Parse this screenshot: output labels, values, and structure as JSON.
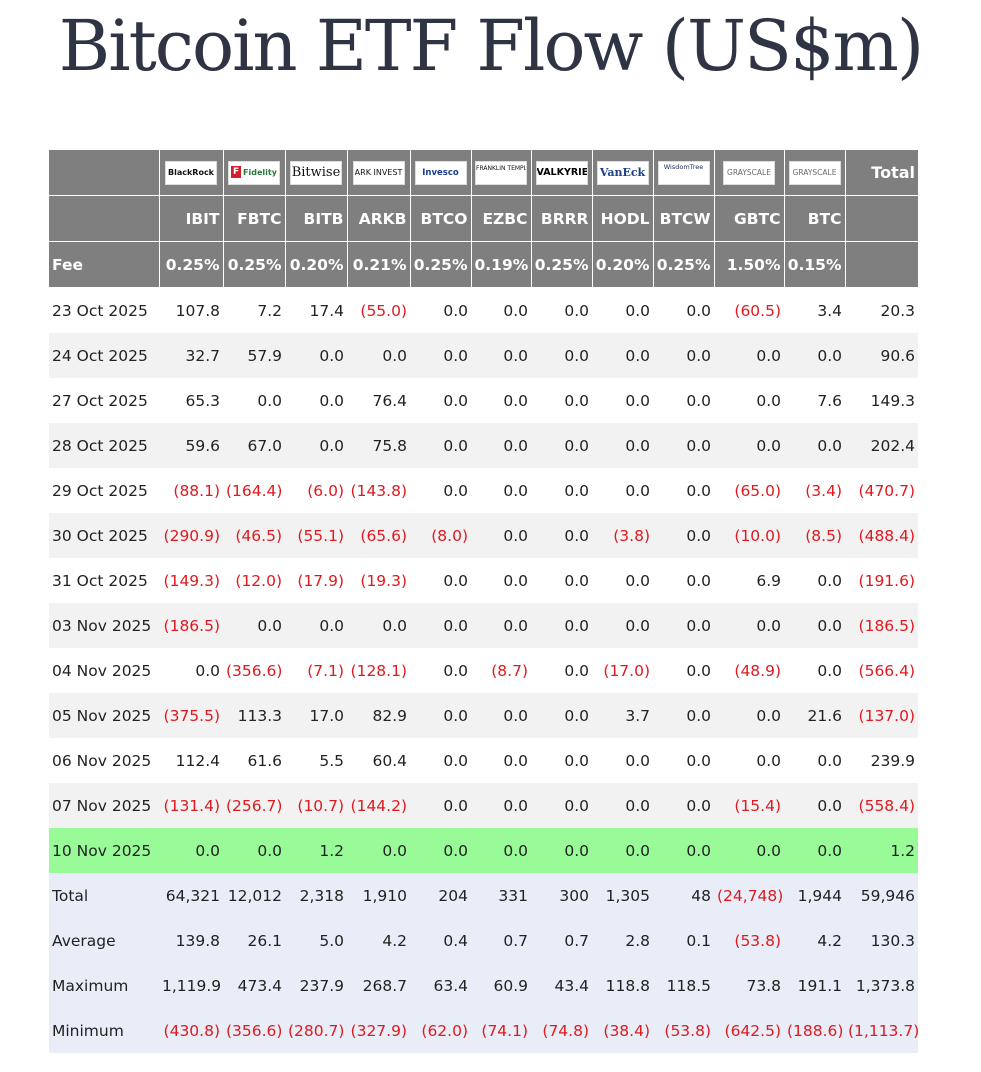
{
  "title": "Bitcoin ETF Flow (US$m)",
  "issuers": [
    {
      "logo_text": "BlackRock",
      "icon": "blackrock-logo"
    },
    {
      "logo_text": "Fidelity",
      "icon": "fidelity-logo"
    },
    {
      "logo_text": "Bitwise",
      "icon": "bitwise-logo"
    },
    {
      "logo_text": "ARK INVEST",
      "icon": "ark-invest-logo"
    },
    {
      "logo_text": "Invesco",
      "icon": "invesco-logo"
    },
    {
      "logo_text": "FRANKLIN TEMPLETON",
      "icon": "franklin-templeton-logo"
    },
    {
      "logo_text": "VALKYRIE",
      "icon": "valkyrie-logo"
    },
    {
      "logo_text": "VanEck",
      "icon": "vaneck-logo"
    },
    {
      "logo_text": "WisdomTree",
      "icon": "wisdomtree-logo"
    },
    {
      "logo_text": "GRAYSCALE",
      "icon": "grayscale-logo"
    },
    {
      "logo_text": "GRAYSCALE",
      "icon": "grayscale-logo"
    }
  ],
  "total_header": "Total",
  "tickers": [
    "IBIT",
    "FBTC",
    "BITB",
    "ARKB",
    "BTCO",
    "EZBC",
    "BRRR",
    "HODL",
    "BTCW",
    "GBTC",
    "BTC"
  ],
  "fee_label": "Fee",
  "fees": [
    "0.25%",
    "0.25%",
    "0.20%",
    "0.21%",
    "0.25%",
    "0.19%",
    "0.25%",
    "0.20%",
    "0.25%",
    "1.50%",
    "0.15%"
  ],
  "rows": [
    {
      "date": "23 Oct 2025",
      "values": [
        "107.8",
        "7.2",
        "17.4",
        "(55.0)",
        "0.0",
        "0.0",
        "0.0",
        "0.0",
        "0.0",
        "(60.5)",
        "3.4",
        "20.3"
      ]
    },
    {
      "date": "24 Oct 2025",
      "values": [
        "32.7",
        "57.9",
        "0.0",
        "0.0",
        "0.0",
        "0.0",
        "0.0",
        "0.0",
        "0.0",
        "0.0",
        "0.0",
        "90.6"
      ]
    },
    {
      "date": "27 Oct 2025",
      "values": [
        "65.3",
        "0.0",
        "0.0",
        "76.4",
        "0.0",
        "0.0",
        "0.0",
        "0.0",
        "0.0",
        "0.0",
        "7.6",
        "149.3"
      ]
    },
    {
      "date": "28 Oct 2025",
      "values": [
        "59.6",
        "67.0",
        "0.0",
        "75.8",
        "0.0",
        "0.0",
        "0.0",
        "0.0",
        "0.0",
        "0.0",
        "0.0",
        "202.4"
      ]
    },
    {
      "date": "29 Oct 2025",
      "values": [
        "(88.1)",
        "(164.4)",
        "(6.0)",
        "(143.8)",
        "0.0",
        "0.0",
        "0.0",
        "0.0",
        "0.0",
        "(65.0)",
        "(3.4)",
        "(470.7)"
      ]
    },
    {
      "date": "30 Oct 2025",
      "values": [
        "(290.9)",
        "(46.5)",
        "(55.1)",
        "(65.6)",
        "(8.0)",
        "0.0",
        "0.0",
        "(3.8)",
        "0.0",
        "(10.0)",
        "(8.5)",
        "(488.4)"
      ]
    },
    {
      "date": "31 Oct 2025",
      "values": [
        "(149.3)",
        "(12.0)",
        "(17.9)",
        "(19.3)",
        "0.0",
        "0.0",
        "0.0",
        "0.0",
        "0.0",
        "6.9",
        "0.0",
        "(191.6)"
      ]
    },
    {
      "date": "03 Nov 2025",
      "values": [
        "(186.5)",
        "0.0",
        "0.0",
        "0.0",
        "0.0",
        "0.0",
        "0.0",
        "0.0",
        "0.0",
        "0.0",
        "0.0",
        "(186.5)"
      ]
    },
    {
      "date": "04 Nov 2025",
      "values": [
        "0.0",
        "(356.6)",
        "(7.1)",
        "(128.1)",
        "0.0",
        "(8.7)",
        "0.0",
        "(17.0)",
        "0.0",
        "(48.9)",
        "0.0",
        "(566.4)"
      ]
    },
    {
      "date": "05 Nov 2025",
      "values": [
        "(375.5)",
        "113.3",
        "17.0",
        "82.9",
        "0.0",
        "0.0",
        "0.0",
        "3.7",
        "0.0",
        "0.0",
        "21.6",
        "(137.0)"
      ]
    },
    {
      "date": "06 Nov 2025",
      "values": [
        "112.4",
        "61.6",
        "5.5",
        "60.4",
        "0.0",
        "0.0",
        "0.0",
        "0.0",
        "0.0",
        "0.0",
        "0.0",
        "239.9"
      ]
    },
    {
      "date": "07 Nov 2025",
      "values": [
        "(131.4)",
        "(256.7)",
        "(10.7)",
        "(144.2)",
        "0.0",
        "0.0",
        "0.0",
        "0.0",
        "0.0",
        "(15.4)",
        "0.0",
        "(558.4)"
      ]
    },
    {
      "date": "10 Nov 2025",
      "values": [
        "0.0",
        "0.0",
        "1.2",
        "0.0",
        "0.0",
        "0.0",
        "0.0",
        "0.0",
        "0.0",
        "0.0",
        "0.0",
        "1.2"
      ],
      "highlight": true
    }
  ],
  "stats": [
    {
      "label": "Total",
      "values": [
        "64,321",
        "12,012",
        "2,318",
        "1,910",
        "204",
        "331",
        "300",
        "1,305",
        "48",
        "(24,748)",
        "1,944",
        "59,946"
      ]
    },
    {
      "label": "Average",
      "values": [
        "139.8",
        "26.1",
        "5.0",
        "4.2",
        "0.4",
        "0.7",
        "0.7",
        "2.8",
        "0.1",
        "(53.8)",
        "4.2",
        "130.3"
      ]
    },
    {
      "label": "Maximum",
      "values": [
        "1,119.9",
        "473.4",
        "237.9",
        "268.7",
        "63.4",
        "60.9",
        "43.4",
        "118.8",
        "118.5",
        "73.8",
        "191.1",
        "1,373.8"
      ]
    },
    {
      "label": "Minimum",
      "values": [
        "(430.8)",
        "(356.6)",
        "(280.7)",
        "(327.9)",
        "(62.0)",
        "(74.1)",
        "(74.8)",
        "(38.4)",
        "(53.8)",
        "(642.5)",
        "(188.6)",
        "(1,113.7)"
      ]
    }
  ],
  "colors": {
    "header_bg": "#7f7f7f",
    "negative": "#e0191f",
    "highlight": "#98fb98",
    "stats_bg": "#e8edf7",
    "alt_row": "#f2f2f2",
    "title": "#2f3444"
  }
}
